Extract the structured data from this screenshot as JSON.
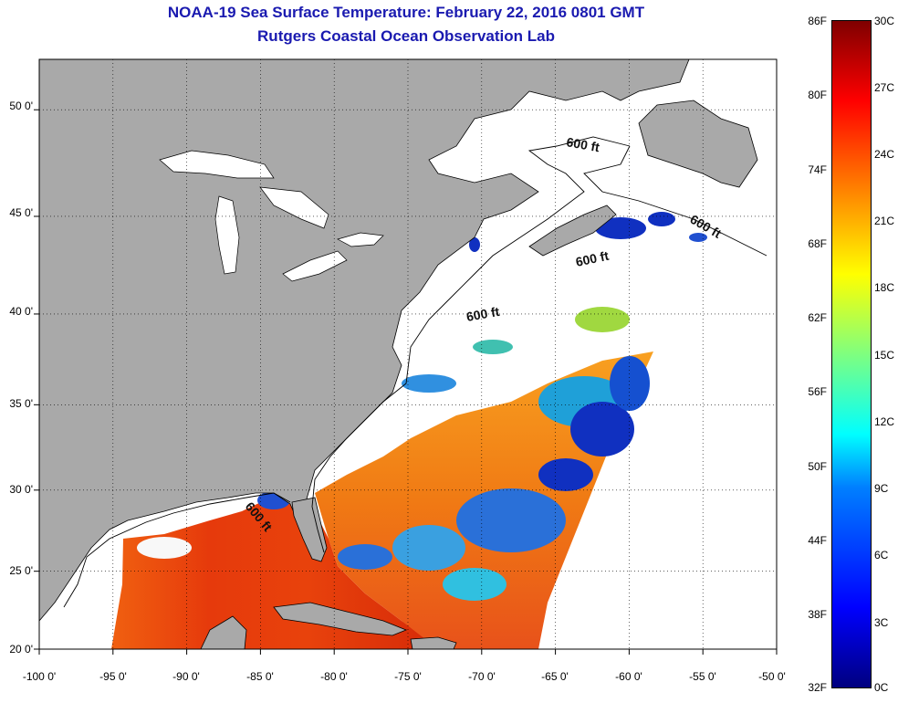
{
  "title": "NOAA-19 Sea Surface Temperature:  February 22, 2016 0801 GMT",
  "subtitle": "Rutgers Coastal Ocean Observation Lab",
  "lat_labels": [
    "50 0'",
    "45 0'",
    "40 0'",
    "35 0'",
    "30 0'",
    "25 0'",
    "20 0'"
  ],
  "lon_labels": [
    "-100 0'",
    "-95 0'",
    "-90 0'",
    "-85 0'",
    "-80 0'",
    "-75 0'",
    "-70 0'",
    "-65 0'",
    "-60 0'",
    "-55 0'",
    "-50 0'"
  ],
  "lat_values": [
    50,
    45,
    40,
    35,
    30,
    25,
    20
  ],
  "lon_values": [
    -100,
    -95,
    -90,
    -85,
    -80,
    -75,
    -70,
    -65,
    -60,
    -55,
    -50
  ],
  "contour_label": "600 ft",
  "colorbar": {
    "fahrenheit": [
      "86F",
      "80F",
      "74F",
      "68F",
      "62F",
      "56F",
      "50F",
      "44F",
      "38F",
      "32F"
    ],
    "celsius": [
      "30C",
      "27C",
      "24C",
      "21C",
      "18C",
      "15C",
      "12C",
      "9C",
      "6C",
      "3C",
      "0C"
    ],
    "range_c": [
      0,
      30
    ]
  },
  "colors": {
    "land": "#a9a9a9",
    "no_data": "#ffffff",
    "title": "#1a1ab0",
    "warm": "#e52a0a",
    "cold": "#1030c0"
  }
}
